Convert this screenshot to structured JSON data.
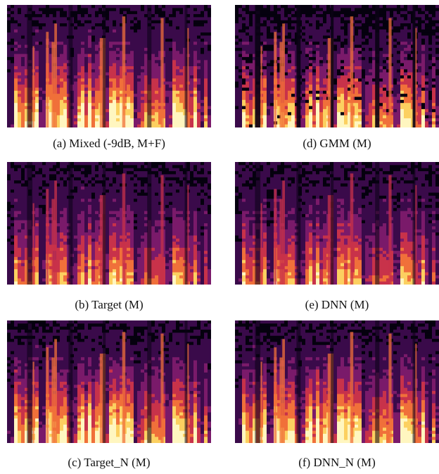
{
  "figure": {
    "panels": [
      {
        "caption": "(a) Mixed (-9dB, M+F)",
        "energy": "high"
      },
      {
        "caption": "(d) GMM (M)",
        "energy": "masked"
      },
      {
        "caption": "(b) Target (M)",
        "energy": "medium"
      },
      {
        "caption": "(e) DNN (M)",
        "energy": "medium"
      },
      {
        "caption": "(c) Target_N (M)",
        "energy": "high"
      },
      {
        "caption": "(f) DNN_N (M)",
        "energy": "high"
      }
    ],
    "colormap": [
      "#05010e",
      "#3a0a4a",
      "#7a1a6a",
      "#c8324a",
      "#f0703a",
      "#fcd060",
      "#fff6c0"
    ]
  }
}
